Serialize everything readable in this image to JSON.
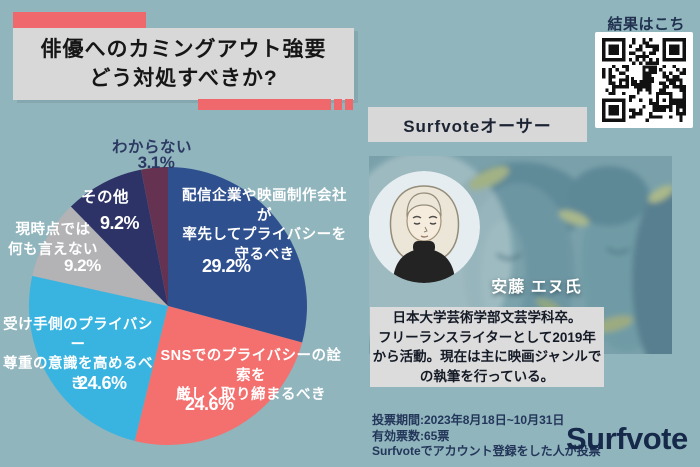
{
  "title": {
    "text": "俳優へのカミングアウト強要\nどう対処すべきか?"
  },
  "qr": {
    "label": "結果はこちら",
    "center_icon": "dino-icon"
  },
  "author": {
    "section_title": "Surfvoteオーサー",
    "name": "安藤 エヌ氏",
    "bio": "日本大学芸術学部文芸学科卒。\nフリーランスライターとして2019年\nから活動。現在は主に映画ジャンルで\nの執筆を行っている。",
    "avatar_icon": "person-portrait-illustration"
  },
  "footer": {
    "vote_period": "投票期間:2023年8月18日~10月31日",
    "valid_votes": "有効票数:65票",
    "note": "Surfvoteでアカウント登録をした人が投票",
    "brand": "Surfvote"
  },
  "colors": {
    "background": "#90b5bd",
    "accent_red": "#ef686c",
    "panel_gray": "#d8d8d8",
    "dark_navy": "#1c2b4d",
    "label_white": "#ffffff"
  },
  "chart_data": {
    "type": "pie",
    "title": "俳優へのカミングアウト強要 どう対処すべきか?",
    "start_angle_deg": 0,
    "direction": "clockwise",
    "total_votes": 65,
    "legend": "labels-on-chart",
    "slices": [
      {
        "label": "配信企業や映画制作会社が\n率先してプライバシーを\n守るべき",
        "value": 29.2,
        "pct_label": "29.2%",
        "color": "#2f508f"
      },
      {
        "label": "SNSでのプライバシーの詮索を\n厳しく取り締まるべき",
        "value": 24.6,
        "pct_label": "24.6%",
        "color": "#f4706f"
      },
      {
        "label": "受け手側のプライバシー\n尊重の意識を高めるべき",
        "value": 24.6,
        "pct_label": "24.6%",
        "color": "#39b4e0"
      },
      {
        "label": "現時点では\n何も言えない",
        "value": 9.2,
        "pct_label": "9.2%",
        "color": "#b3b2b5"
      },
      {
        "label": "その他",
        "value": 9.2,
        "pct_label": "9.2%",
        "color": "#2d3366"
      },
      {
        "label": "わからない",
        "value": 3.1,
        "pct_label": "3.1%",
        "color": "#653252"
      }
    ]
  }
}
